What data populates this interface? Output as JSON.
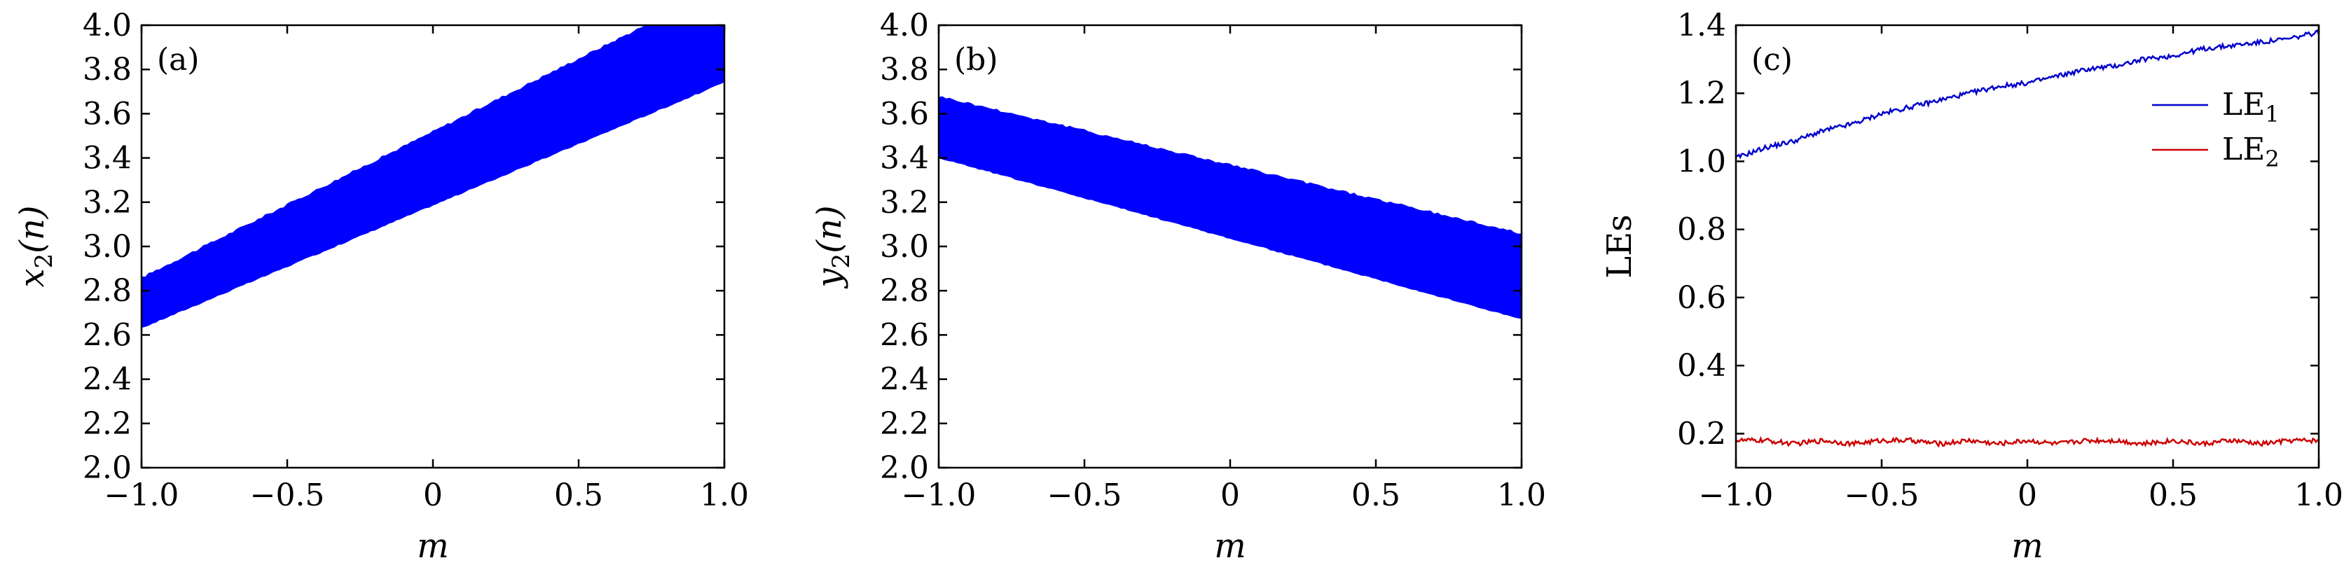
{
  "chart_data": [
    {
      "type": "area",
      "panel_label": "(a)",
      "xlabel": "m",
      "ylabel_base": "x",
      "ylabel_sub": "2",
      "ylabel_rest": "(n)",
      "xlim": [
        -1.0,
        1.0
      ],
      "ylim": [
        2.0,
        4.0
      ],
      "xticks": [
        "−1.0",
        "−0.5",
        "0",
        "0.5",
        "1.0"
      ],
      "xtick_values": [
        -1.0,
        -0.5,
        0,
        0.5,
        1.0
      ],
      "yticks": [
        "2.0",
        "2.2",
        "2.4",
        "2.6",
        "2.8",
        "3.0",
        "3.2",
        "3.4",
        "3.6",
        "3.8",
        "4.0"
      ],
      "ytick_values": [
        2.0,
        2.2,
        2.4,
        2.6,
        2.8,
        3.0,
        3.2,
        3.4,
        3.6,
        3.8,
        4.0
      ],
      "band": {
        "x": [
          -1.0,
          1.0
        ],
        "lower": [
          2.63,
          3.74
        ],
        "upper": [
          2.86,
          4.18
        ]
      },
      "color": "#0000ff"
    },
    {
      "type": "area",
      "panel_label": "(b)",
      "xlabel": "m",
      "ylabel_base": "y",
      "ylabel_sub": "2",
      "ylabel_rest": "(n)",
      "xlim": [
        -1.0,
        1.0
      ],
      "ylim": [
        2.0,
        4.0
      ],
      "xticks": [
        "−1.0",
        "−0.5",
        "0",
        "0.5",
        "1.0"
      ],
      "xtick_values": [
        -1.0,
        -0.5,
        0,
        0.5,
        1.0
      ],
      "yticks": [
        "2.0",
        "2.2",
        "2.4",
        "2.6",
        "2.8",
        "3.0",
        "3.2",
        "3.4",
        "3.6",
        "3.8",
        "4.0"
      ],
      "ytick_values": [
        2.0,
        2.2,
        2.4,
        2.6,
        2.8,
        3.0,
        3.2,
        3.4,
        3.6,
        3.8,
        4.0
      ],
      "band": {
        "x": [
          -1.0,
          1.0
        ],
        "lower": [
          3.4,
          2.67
        ],
        "upper": [
          3.68,
          3.06
        ]
      },
      "color": "#0000ff"
    },
    {
      "type": "line",
      "panel_label": "(c)",
      "xlabel": "m",
      "ylabel": "LEs",
      "xlim": [
        -1.0,
        1.0
      ],
      "ylim": [
        0.1,
        1.4
      ],
      "xticks": [
        "−1.0",
        "−0.5",
        "0",
        "0.5",
        "1.0"
      ],
      "xtick_values": [
        -1.0,
        -0.5,
        0,
        0.5,
        1.0
      ],
      "yticks": [
        "0.2",
        "0.4",
        "0.6",
        "0.8",
        "1.0",
        "1.2",
        "1.4"
      ],
      "ytick_values": [
        0.2,
        0.4,
        0.6,
        0.8,
        1.0,
        1.2,
        1.4
      ],
      "legend_position": "upper-right",
      "series": [
        {
          "name": "LE",
          "name_sub": "1",
          "color": "#0000cc",
          "x": [
            -1.0,
            -0.9,
            -0.8,
            -0.7,
            -0.6,
            -0.5,
            -0.4,
            -0.3,
            -0.2,
            -0.1,
            0.0,
            0.1,
            0.2,
            0.3,
            0.4,
            0.5,
            0.6,
            0.7,
            0.8,
            0.9,
            1.0
          ],
          "y": [
            1.01,
            1.04,
            1.06,
            1.09,
            1.11,
            1.14,
            1.16,
            1.18,
            1.2,
            1.22,
            1.23,
            1.25,
            1.27,
            1.28,
            1.3,
            1.31,
            1.33,
            1.34,
            1.35,
            1.36,
            1.38
          ]
        },
        {
          "name": "LE",
          "name_sub": "2",
          "color": "#cc0000",
          "x": [
            -1.0,
            -0.9,
            -0.8,
            -0.7,
            -0.6,
            -0.5,
            -0.4,
            -0.3,
            -0.2,
            -0.1,
            0.0,
            0.1,
            0.2,
            0.3,
            0.4,
            0.5,
            0.6,
            0.7,
            0.8,
            0.9,
            1.0
          ],
          "y": [
            0.18,
            0.18,
            0.17,
            0.18,
            0.17,
            0.18,
            0.18,
            0.17,
            0.18,
            0.17,
            0.18,
            0.17,
            0.18,
            0.18,
            0.17,
            0.18,
            0.17,
            0.18,
            0.17,
            0.18,
            0.18
          ]
        }
      ]
    }
  ]
}
